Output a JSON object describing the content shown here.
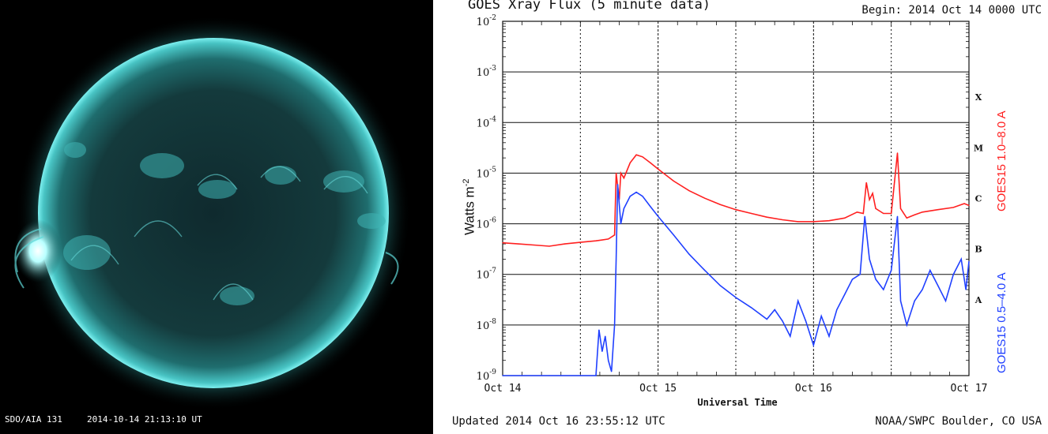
{
  "sun_image": {
    "caption_left": "SDO/AIA  131",
    "caption_right": "2014-10-14 21:13:10 UT",
    "colors": {
      "disk": "#2a8e8e",
      "bright": "#c8ffff",
      "background": "#000000"
    }
  },
  "chart": {
    "title": "GOES Xray Flux (5 minute data)",
    "begin": "Begin:  2014 Oct 14 0000 UTC",
    "updated": "Updated 2014 Oct 16 23:55:12 UTC",
    "credit": "NOAA/SWPC Boulder, CO USA",
    "ylabel": "Watts m",
    "ylabel_sup": "-2",
    "xlabel": "Universal Time",
    "x_ticks": [
      "Oct 14",
      "Oct 15",
      "Oct 16",
      "Oct 17"
    ],
    "y_ticks": [
      {
        "base": "10",
        "exp": "-2"
      },
      {
        "base": "10",
        "exp": "-3"
      },
      {
        "base": "10",
        "exp": "-4"
      },
      {
        "base": "10",
        "exp": "-5"
      },
      {
        "base": "10",
        "exp": "-6"
      },
      {
        "base": "10",
        "exp": "-7"
      },
      {
        "base": "10",
        "exp": "-8"
      },
      {
        "base": "10",
        "exp": "-9"
      }
    ],
    "flare_classes": [
      "X",
      "M",
      "C",
      "B",
      "A"
    ],
    "series_labels": [
      {
        "text": "GOES15 1.0–8.0 A",
        "color": "#ff2020"
      },
      {
        "text": "GOES15 0.5–4.0 A",
        "color": "#2040ff"
      }
    ]
  },
  "chart_data": {
    "type": "line",
    "title": "GOES Xray Flux (5 minute data)",
    "xlabel": "Universal Time",
    "ylabel": "Watts m-2",
    "y_scale": "log",
    "ylim": [
      1e-09,
      0.01
    ],
    "xlim": [
      0,
      3
    ],
    "x_unit_note": "days since 2014 Oct 14 0000 UTC",
    "x_tick_labels": [
      "Oct 14",
      "Oct 15",
      "Oct 16",
      "Oct 17"
    ],
    "grid": true,
    "series": [
      {
        "name": "GOES15 1.0-8.0 A",
        "color": "#ff2020",
        "points": [
          [
            0.0,
            4.2e-07
          ],
          [
            0.1,
            4e-07
          ],
          [
            0.2,
            3.8e-07
          ],
          [
            0.3,
            3.6e-07
          ],
          [
            0.4,
            4e-07
          ],
          [
            0.5,
            4.3e-07
          ],
          [
            0.6,
            4.6e-07
          ],
          [
            0.68,
            5e-07
          ],
          [
            0.72,
            6e-07
          ],
          [
            0.73,
            1e-05
          ],
          [
            0.75,
            3e-06
          ],
          [
            0.76,
            1e-05
          ],
          [
            0.78,
            8e-06
          ],
          [
            0.82,
            1.6e-05
          ],
          [
            0.86,
            2.3e-05
          ],
          [
            0.9,
            2.1e-05
          ],
          [
            0.95,
            1.6e-05
          ],
          [
            1.0,
            1.2e-05
          ],
          [
            1.1,
            7e-06
          ],
          [
            1.2,
            4.5e-06
          ],
          [
            1.3,
            3.2e-06
          ],
          [
            1.4,
            2.4e-06
          ],
          [
            1.5,
            1.9e-06
          ],
          [
            1.6,
            1.6e-06
          ],
          [
            1.7,
            1.35e-06
          ],
          [
            1.8,
            1.2e-06
          ],
          [
            1.9,
            1.1e-06
          ],
          [
            2.0,
            1.1e-06
          ],
          [
            2.1,
            1.15e-06
          ],
          [
            2.2,
            1.3e-06
          ],
          [
            2.28,
            1.7e-06
          ],
          [
            2.32,
            1.6e-06
          ],
          [
            2.34,
            6.5e-06
          ],
          [
            2.36,
            3e-06
          ],
          [
            2.38,
            4e-06
          ],
          [
            2.4,
            2e-06
          ],
          [
            2.45,
            1.6e-06
          ],
          [
            2.5,
            1.6e-06
          ],
          [
            2.54,
            2.5e-05
          ],
          [
            2.56,
            2e-06
          ],
          [
            2.6,
            1.3e-06
          ],
          [
            2.65,
            1.5e-06
          ],
          [
            2.7,
            1.7e-06
          ],
          [
            2.8,
            1.9e-06
          ],
          [
            2.9,
            2.1e-06
          ],
          [
            2.97,
            2.5e-06
          ],
          [
            3.0,
            2.3e-06
          ]
        ]
      },
      {
        "name": "GOES15 0.5-4.0 A",
        "color": "#2040ff",
        "points": [
          [
            0.0,
            1e-09
          ],
          [
            0.3,
            1e-09
          ],
          [
            0.5,
            1e-09
          ],
          [
            0.6,
            1e-09
          ],
          [
            0.62,
            8e-09
          ],
          [
            0.64,
            3e-09
          ],
          [
            0.66,
            6e-09
          ],
          [
            0.68,
            2e-09
          ],
          [
            0.7,
            1.2e-09
          ],
          [
            0.72,
            1e-08
          ],
          [
            0.73,
            2e-07
          ],
          [
            0.74,
            6e-06
          ],
          [
            0.76,
            1e-06
          ],
          [
            0.78,
            2e-06
          ],
          [
            0.82,
            3.5e-06
          ],
          [
            0.86,
            4.2e-06
          ],
          [
            0.9,
            3.5e-06
          ],
          [
            0.95,
            2.2e-06
          ],
          [
            1.0,
            1.4e-06
          ],
          [
            1.1,
            6e-07
          ],
          [
            1.2,
            2.5e-07
          ],
          [
            1.3,
            1.2e-07
          ],
          [
            1.4,
            6e-08
          ],
          [
            1.5,
            3.5e-08
          ],
          [
            1.6,
            2.2e-08
          ],
          [
            1.7,
            1.3e-08
          ],
          [
            1.75,
            2e-08
          ],
          [
            1.8,
            1.2e-08
          ],
          [
            1.85,
            6e-09
          ],
          [
            1.9,
            3e-08
          ],
          [
            1.95,
            1.2e-08
          ],
          [
            2.0,
            4e-09
          ],
          [
            2.05,
            1.5e-08
          ],
          [
            2.1,
            6e-09
          ],
          [
            2.15,
            2e-08
          ],
          [
            2.2,
            4e-08
          ],
          [
            2.25,
            8e-08
          ],
          [
            2.3,
            1e-07
          ],
          [
            2.33,
            1.4e-06
          ],
          [
            2.36,
            2e-07
          ],
          [
            2.4,
            8e-08
          ],
          [
            2.45,
            5e-08
          ],
          [
            2.5,
            1.2e-07
          ],
          [
            2.54,
            1.4e-06
          ],
          [
            2.56,
            3e-08
          ],
          [
            2.6,
            1e-08
          ],
          [
            2.65,
            3e-08
          ],
          [
            2.7,
            5e-08
          ],
          [
            2.75,
            1.2e-07
          ],
          [
            2.8,
            6e-08
          ],
          [
            2.85,
            3e-08
          ],
          [
            2.9,
            1e-07
          ],
          [
            2.95,
            2e-07
          ],
          [
            2.98,
            5e-08
          ],
          [
            3.0,
            1.8e-07
          ]
        ]
      }
    ]
  }
}
